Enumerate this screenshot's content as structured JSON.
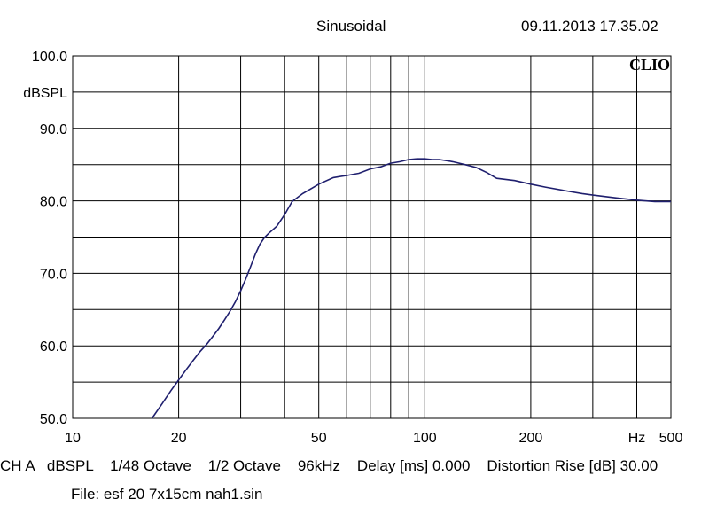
{
  "header": {
    "mode": "Sinusoidal",
    "timestamp": "09.11.2013 17.35.02",
    "logo": "CLIO"
  },
  "status": {
    "channel": "CH A",
    "unit": "dBSPL",
    "smoothing": "1/48 Octave",
    "resolution": "1/2 Octave",
    "sample_rate": "96kHz",
    "delay": "Delay [ms] 0.000",
    "distortion": "Distortion Rise [dB] 30.00"
  },
  "file": {
    "label": "File: esf 20 7x15cm nah1.sin"
  },
  "chart_data": {
    "type": "line",
    "title": "",
    "xlabel": "Hz",
    "ylabel": "dBSPL",
    "xscale": "log",
    "xlim": [
      10,
      500
    ],
    "ylim": [
      50,
      100
    ],
    "grid": true,
    "x_ticks": [
      10,
      20,
      50,
      100,
      200,
      500
    ],
    "x_tick_labels": [
      "10",
      "20",
      "50",
      "100",
      "200",
      "500"
    ],
    "y_ticks": [
      50,
      60,
      70,
      80,
      90,
      100
    ],
    "y_tick_labels": [
      "50.0",
      "60.0",
      "70.0",
      "80.0",
      "90.0",
      "100.0"
    ],
    "line_color": "#1f1f6e",
    "series": [
      {
        "x": [
          16.8,
          18,
          19,
          20,
          21,
          22,
          23,
          24,
          25,
          26,
          27,
          28,
          29,
          30,
          31,
          32,
          33,
          34,
          35,
          36,
          38,
          40,
          42,
          45,
          48,
          50,
          55,
          60,
          65,
          70,
          75,
          80,
          85,
          90,
          95,
          100,
          105,
          110,
          120,
          130,
          140,
          150,
          160,
          180,
          200,
          220,
          250,
          280,
          300,
          350,
          400,
          450,
          500
        ],
        "y": [
          50.0,
          52.1,
          53.8,
          55.3,
          56.7,
          58.0,
          59.2,
          60.2,
          61.3,
          62.4,
          63.6,
          64.8,
          66.1,
          67.6,
          69.2,
          70.9,
          72.6,
          74.0,
          74.9,
          75.5,
          76.5,
          78.1,
          79.9,
          81.0,
          81.8,
          82.3,
          83.2,
          83.5,
          83.8,
          84.4,
          84.7,
          85.2,
          85.4,
          85.7,
          85.8,
          85.8,
          85.7,
          85.7,
          85.4,
          85.0,
          84.6,
          83.9,
          83.1,
          82.8,
          82.3,
          81.9,
          81.4,
          81.0,
          80.8,
          80.4,
          80.1,
          79.9,
          79.9
        ]
      }
    ]
  }
}
